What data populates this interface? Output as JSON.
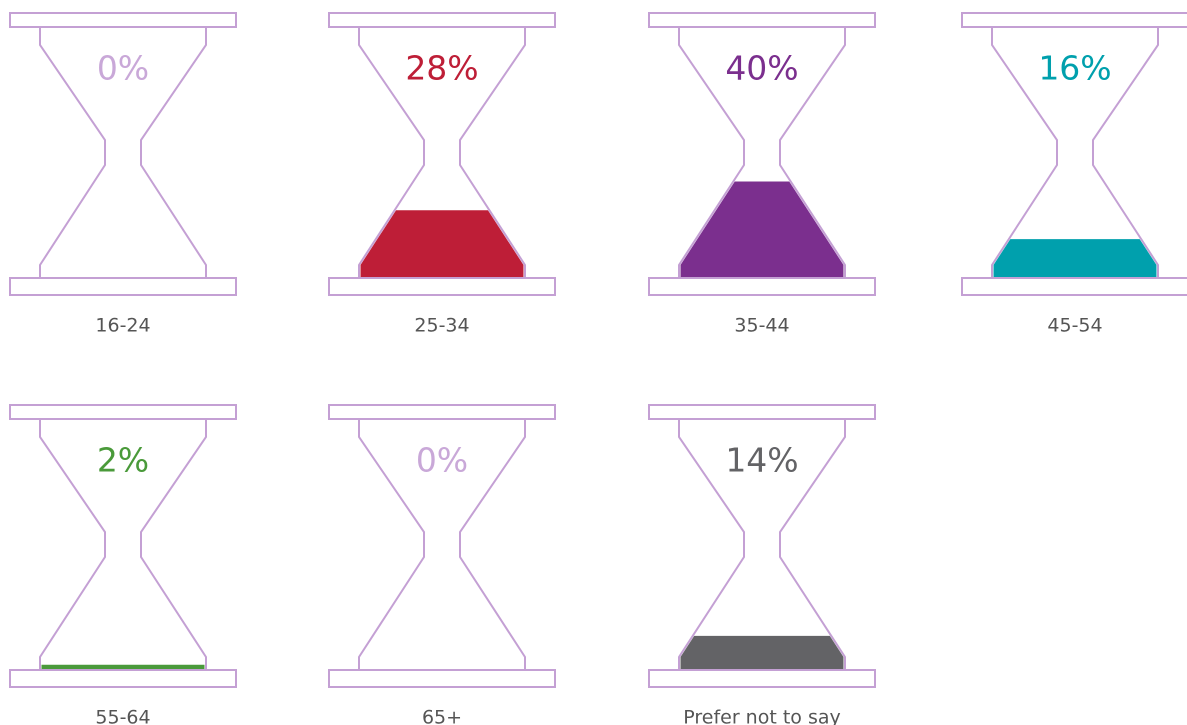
{
  "chart_data": {
    "type": "hourglass",
    "categories": [
      "16-24",
      "25-34",
      "35-44",
      "45-54",
      "55-64",
      "65+",
      "Prefer not to say"
    ],
    "values": [
      0,
      28,
      40,
      16,
      2,
      0,
      14
    ],
    "value_labels": [
      "0%",
      "28%",
      "40%",
      "16%",
      "2%",
      "0%",
      "14%"
    ],
    "colors": [
      "#c9a8d8",
      "#be1e37",
      "#7b2f8e",
      "#00a0ad",
      "#4a9a3a",
      "#c9a8d8",
      "#636366"
    ],
    "outline_color": "#c4a0d4"
  }
}
